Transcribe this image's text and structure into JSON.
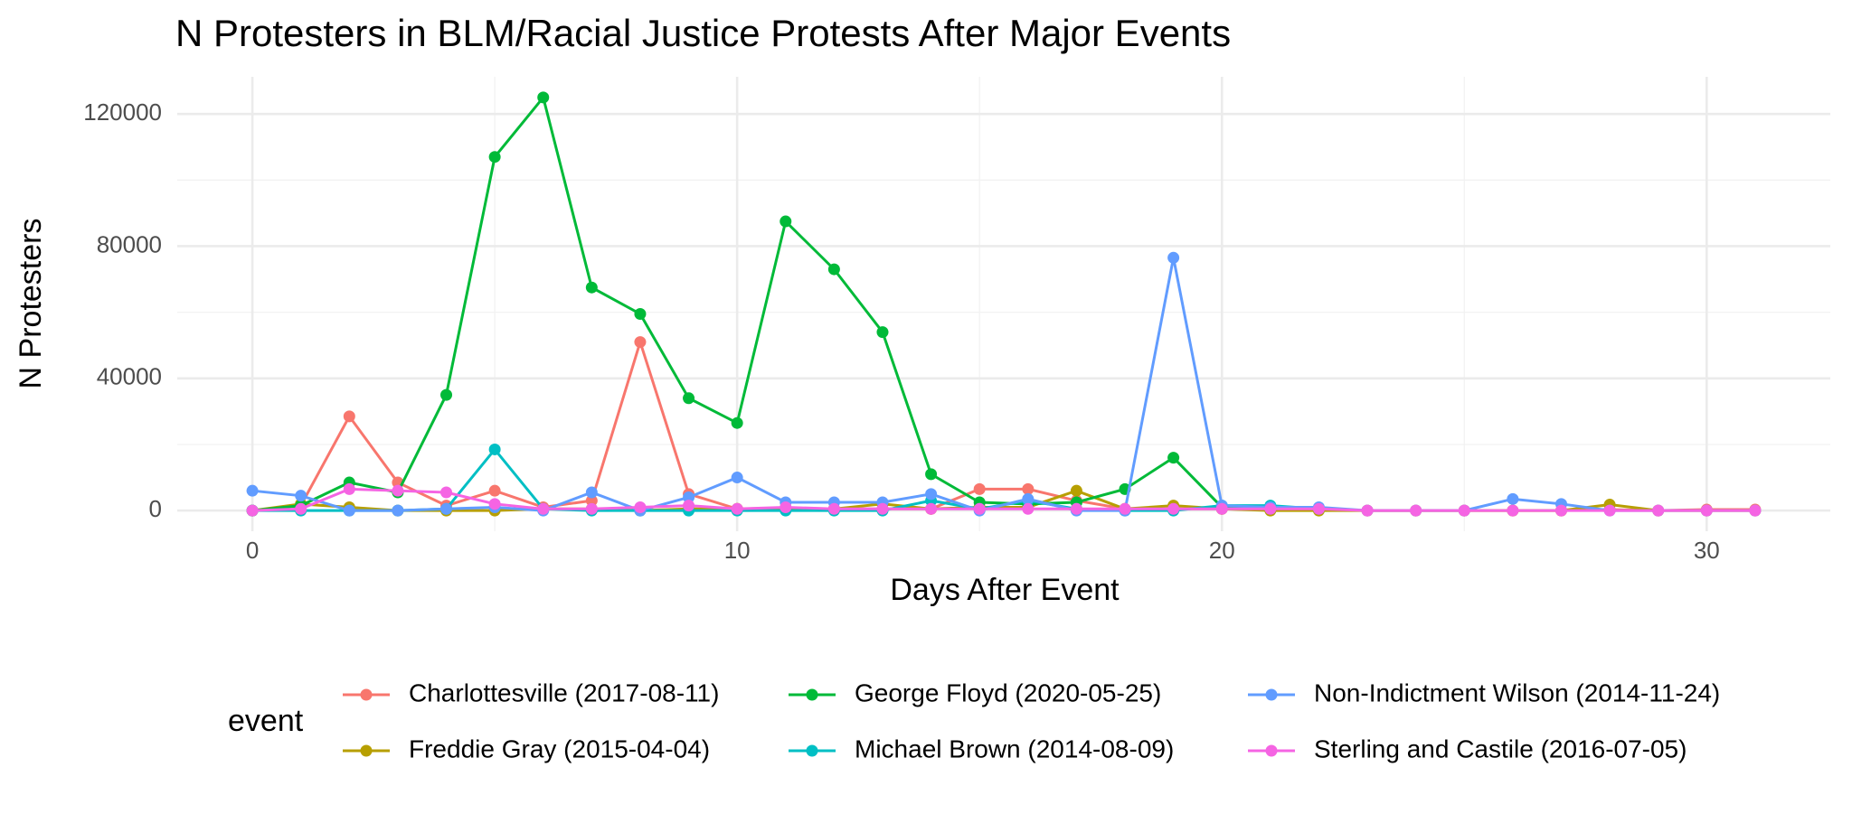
{
  "chart_data": {
    "type": "line",
    "title": "N Protesters in BLM/Racial Justice Protests After Major Events",
    "x_label": "Days After Event",
    "y_label": "N Protesters",
    "legend_title": "event",
    "x": [
      0,
      1,
      2,
      3,
      4,
      5,
      6,
      7,
      8,
      9,
      10,
      11,
      12,
      13,
      14,
      15,
      16,
      17,
      18,
      19,
      20,
      21,
      22,
      23,
      24,
      25,
      26,
      27,
      28,
      29,
      30,
      31
    ],
    "series": [
      {
        "name": "Charlottesville (2017-08-11)",
        "color": "#f8766d",
        "values": [
          0,
          1500,
          28500,
          8500,
          1500,
          6000,
          1000,
          3000,
          51000,
          5000,
          500,
          800,
          500,
          500,
          500,
          6500,
          6500,
          3000,
          500,
          500,
          500,
          200,
          200,
          0,
          0,
          0,
          0,
          0,
          300,
          0,
          300,
          300
        ]
      },
      {
        "name": "Freddie Gray (2015-04-04)",
        "color": "#b79f00",
        "values": [
          0,
          2000,
          1000,
          0,
          0,
          0,
          500,
          500,
          0,
          500,
          500,
          500,
          500,
          2000,
          500,
          1000,
          1000,
          6000,
          500,
          1500,
          500,
          0,
          0,
          0,
          0,
          0,
          0,
          0,
          1800,
          0,
          0,
          0
        ]
      },
      {
        "name": "George Floyd (2020-05-25)",
        "color": "#00ba38",
        "values": [
          0,
          1500,
          8500,
          5500,
          35000,
          107000,
          125000,
          67500,
          59500,
          34000,
          26500,
          87500,
          73000,
          54000,
          11000,
          2500,
          2000,
          2500,
          6500,
          16000,
          1000,
          500,
          null,
          null,
          null,
          null,
          null,
          null,
          null,
          null,
          null,
          null
        ]
      },
      {
        "name": "Michael Brown (2014-08-09)",
        "color": "#00bfc4",
        "values": [
          0,
          0,
          0,
          0,
          500,
          18500,
          500,
          0,
          0,
          0,
          0,
          0,
          0,
          0,
          3000,
          500,
          3000,
          500,
          0,
          0,
          1500,
          1500,
          500,
          null,
          null,
          null,
          null,
          null,
          null,
          null,
          null,
          null
        ]
      },
      {
        "name": "Non-Indictment Wilson (2014-11-24)",
        "color": "#619cff",
        "values": [
          6000,
          4500,
          0,
          0,
          500,
          1000,
          0,
          5500,
          0,
          4000,
          10000,
          2500,
          2500,
          2500,
          5000,
          0,
          3500,
          0,
          0,
          76500,
          1500,
          1000,
          1000,
          0,
          0,
          0,
          3500,
          2000,
          0,
          0,
          0,
          0
        ]
      },
      {
        "name": "Sterling and Castile (2016-07-05)",
        "color": "#f564e3",
        "values": [
          0,
          500,
          6500,
          6000,
          5500,
          2000,
          500,
          500,
          1000,
          1500,
          500,
          1000,
          500,
          500,
          500,
          500,
          500,
          500,
          500,
          500,
          500,
          500,
          500,
          0,
          0,
          0,
          0,
          0,
          0,
          0,
          0,
          0
        ]
      }
    ],
    "xlim": [
      -1.55,
      32.55
    ],
    "xticks": [
      0,
      10,
      20,
      30
    ],
    "ylim": [
      -6250,
      131250
    ],
    "yticks": [
      0,
      40000,
      80000,
      120000
    ],
    "grid": true,
    "legend_position": "bottom"
  }
}
